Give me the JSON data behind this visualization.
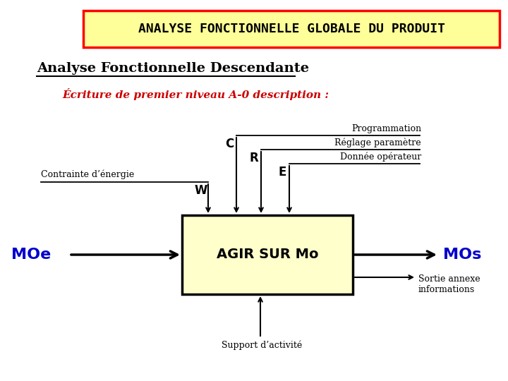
{
  "title": "ANALYSE FONCTIONNELLE GLOBALE DU PRODUIT",
  "subtitle": "Analyse Fonctionnelle Descendante",
  "italic_text": "Écriture de premier niveau A-0 description :",
  "box_label": "AGIR SUR Mo",
  "box_color": "#ffffcc",
  "box_edge_color": "#000000",
  "title_bg": "#ffff99",
  "title_border": "#ff0000",
  "background": "#ffffff",
  "labels": {
    "W": "W",
    "C": "C",
    "R": "R",
    "E": "E",
    "MOe": "MOe",
    "MOs": "MOs",
    "Programmation": "Programmation",
    "Reglage": "Réglage paramètre",
    "Donnee": "Donnée opérateur",
    "Contrainte": "Contrainte d’énergie",
    "Support": "Support d’activité",
    "Sortie": "Sortie annexe\ninformations"
  },
  "colors": {
    "MOe": "#0000cc",
    "MOs": "#0000cc",
    "box_text": "#000000",
    "arrow": "#000000",
    "subtitle": "#000000",
    "italic": "#cc0000",
    "WCRE": "#000000"
  }
}
